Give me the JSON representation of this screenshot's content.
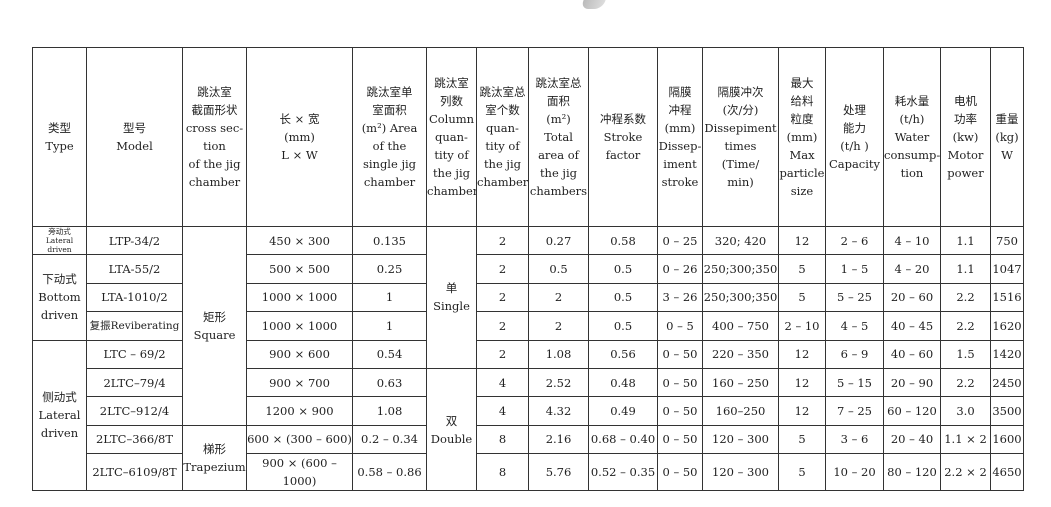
{
  "headers": [
    "类型\nType",
    "型号\nModel",
    "跳汰室\n截面形状\ncross sec-\ntion\nof the jig\nchamber",
    "长 × 宽\n(mm)\nL × W",
    "跳汰室单\n室面积\n(m²) Area\nof the\nsingle jig\nchamber",
    "跳汰室\n列数\nColumn\nquan-\ntity of\nthe jig\nchamber",
    "跳汰室总\n室个数\nquan-\ntity of\nthe jig\nchamber",
    "跳汰室总\n面积\n(m²)\nTotal\narea of\nthe jig\nchambers",
    "冲程系数\nStroke\nfactor",
    "隔膜\n冲程\n(mm)\nDissep-\niment\nstroke",
    "隔膜冲次\n(次/分)\nDissepiment\ntimes\n(Time/\nmin)",
    "最大\n给料\n粒度\n(mm)\nMax\nparticle\nsize",
    "处理\n能力\n(t/h )\nCapacity",
    "耗水量\n(t/h)\nWater\nconsump-\ntion",
    "电机\n功率\n(kw)\nMotor\npower",
    "重量\n(kg)\nW"
  ],
  "types": [
    "旁动式\nLateral driven",
    "下动式\nBottom\ndriven",
    "侧动式\nLateral\ndriven"
  ],
  "cross_sections": [
    "矩形\nSquare",
    "梯形\nTrapezium"
  ],
  "column_quantities": [
    "单\nSingle",
    "双\nDouble"
  ],
  "rows": [
    {
      "model": "LTP-34/2",
      "lw": "450 × 300",
      "single_area": "0.135",
      "chambers": "2",
      "total_area": "0.27",
      "stroke_factor": "0.58",
      "stroke": "0 – 25",
      "times": "320;  420",
      "max_size": "12",
      "capacity": "2 – 6",
      "water": "4 – 10",
      "power": "1.1",
      "weight": "750"
    },
    {
      "model": "LTA-55/2",
      "lw": "500 × 500",
      "single_area": "0.25",
      "chambers": "2",
      "total_area": "0.5",
      "stroke_factor": "0.5",
      "stroke": "0 – 26",
      "times": "250;300;350",
      "max_size": "5",
      "capacity": "1 – 5",
      "water": "4 – 20",
      "power": "1.1",
      "weight": "1047"
    },
    {
      "model": "LTA-1010/2",
      "lw": "1000 × 1000",
      "single_area": "1",
      "chambers": "2",
      "total_area": "2",
      "stroke_factor": "0.5",
      "stroke": "3 – 26",
      "times": "250;300;350",
      "max_size": "5",
      "capacity": "5 – 25",
      "water": "20 – 60",
      "power": "2.2",
      "weight": "1516"
    },
    {
      "model": "复振Reviberating",
      "lw": "1000 × 1000",
      "single_area": "1",
      "chambers": "2",
      "total_area": "2",
      "stroke_factor": "0.5",
      "stroke": "0 – 5",
      "times": "400 – 750",
      "max_size": "2 – 10",
      "capacity": "4 – 5",
      "water": "40 – 45",
      "power": "2.2",
      "weight": "1620"
    },
    {
      "model": "LTC – 69/2",
      "lw": "900 × 600",
      "single_area": "0.54",
      "chambers": "2",
      "total_area": "1.08",
      "stroke_factor": "0.56",
      "stroke": "0 – 50",
      "times": "220 – 350",
      "max_size": "12",
      "capacity": "6 – 9",
      "water": "40 – 60",
      "power": "1.5",
      "weight": "1420"
    },
    {
      "model": "2LTC–79/4",
      "lw": "900 × 700",
      "single_area": "0.63",
      "chambers": "4",
      "total_area": "2.52",
      "stroke_factor": "0.48",
      "stroke": "0 – 50",
      "times": "160 – 250",
      "max_size": "12",
      "capacity": "5 – 15",
      "water": "20 – 90",
      "power": "2.2",
      "weight": "2450"
    },
    {
      "model": "2LTC–912/4",
      "lw": "1200 × 900",
      "single_area": "1.08",
      "chambers": "4",
      "total_area": "4.32",
      "stroke_factor": "0.49",
      "stroke": "0 – 50",
      "times": "160–250",
      "max_size": "12",
      "capacity": "7 – 25",
      "water": "60 – 120",
      "power": "3.0",
      "weight": "3500"
    },
    {
      "model": "2LTC–366/8T",
      "lw": "600 × (300 – 600)",
      "single_area": "0.2 – 0.34",
      "chambers": "8",
      "total_area": "2.16",
      "stroke_factor": "0.68 – 0.40",
      "stroke": "0 – 50",
      "times": "120 – 300",
      "max_size": "5",
      "capacity": "3 – 6",
      "water": "20 – 40",
      "power": "1.1 × 2",
      "weight": "1600"
    },
    {
      "model": "2LTC–6109/8T",
      "lw": "900 × (600 – 1000)",
      "single_area": "0.58 – 0.86",
      "chambers": "8",
      "total_area": "5.76",
      "stroke_factor": "0.52 – 0.35",
      "stroke": "0 – 50",
      "times": "120 – 300",
      "max_size": "5",
      "capacity": "10 – 20",
      "water": "80 – 120",
      "power": "2.2 × 2",
      "weight": "4650"
    }
  ]
}
